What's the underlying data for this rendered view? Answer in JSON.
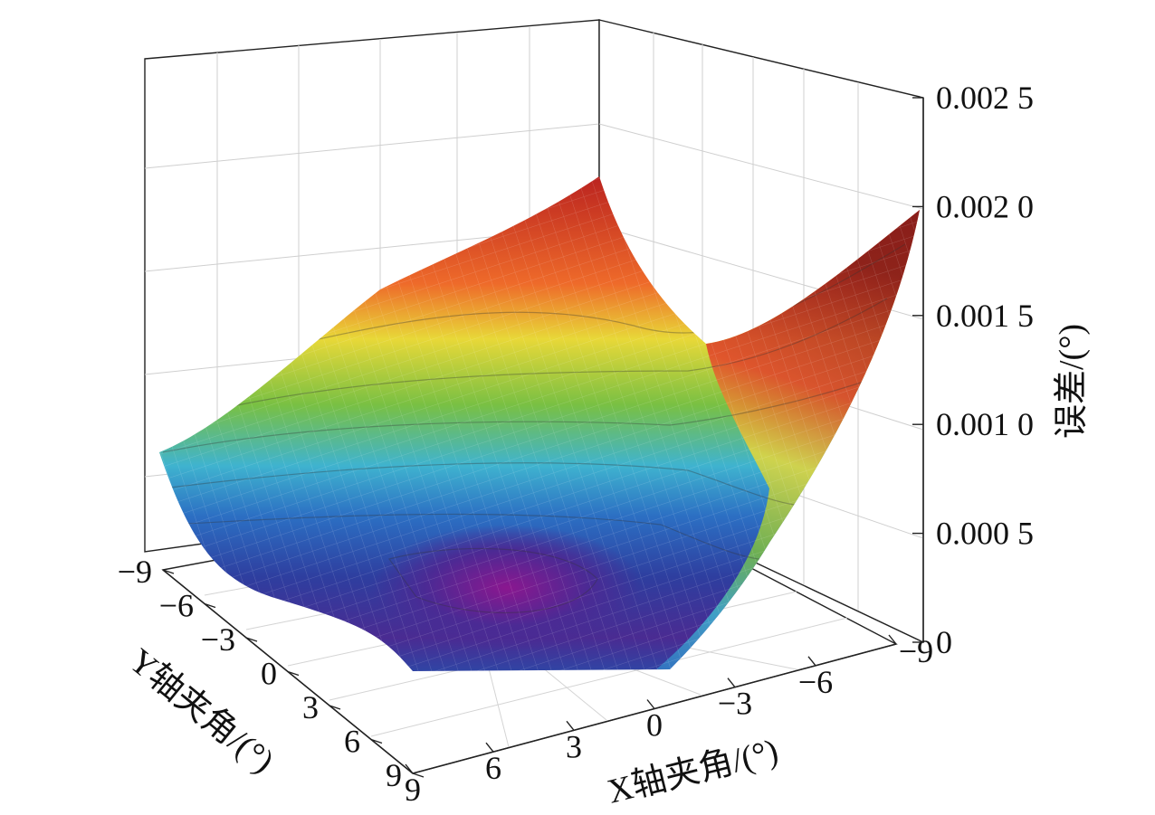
{
  "chart_data": {
    "type": "surface3d",
    "title": "",
    "xlabel": "X轴夹角/(°)",
    "ylabel": "Y轴夹角/(°)",
    "zlabel": "误差/(°)",
    "x_ticks": [
      "9",
      "6",
      "3",
      "0",
      "−3",
      "−6",
      "−9"
    ],
    "y_ticks": [
      "−9",
      "−6",
      "−3",
      "0",
      "3",
      "6",
      "9"
    ],
    "z_ticks": [
      "0",
      "0.000 5",
      "0.001 0",
      "0.001 5",
      "0.002 0",
      "0.002 5"
    ],
    "x_values": [
      9,
      6,
      3,
      0,
      -3,
      -6,
      -9
    ],
    "y_values": [
      -9,
      -6,
      -3,
      0,
      3,
      6,
      9
    ],
    "z_range": [
      0,
      0.0025
    ],
    "grid": true,
    "colormap": [
      "#5b1a8c",
      "#2d3c9c",
      "#2f6ac2",
      "#38a8dc",
      "#79c043",
      "#e3d437",
      "#f07f2a",
      "#d62d26",
      "#8a1a1a"
    ],
    "surface_points": [
      {
        "x": 9,
        "y": -9,
        "z": 0.00098
      },
      {
        "x": 9,
        "y": -6,
        "z": 0.0007
      },
      {
        "x": 9,
        "y": -3,
        "z": 0.00048
      },
      {
        "x": 9,
        "y": 0,
        "z": 0.00032
      },
      {
        "x": 9,
        "y": 3,
        "z": 0.00026
      },
      {
        "x": 9,
        "y": 6,
        "z": 0.00018
      },
      {
        "x": 9,
        "y": 9,
        "z": 0.0001
      },
      {
        "x": 0,
        "y": -9,
        "z": 0.0018
      },
      {
        "x": 0,
        "y": 0,
        "z": 0.00095
      },
      {
        "x": 0,
        "y": 6,
        "z": 0.00012
      },
      {
        "x": 0,
        "y": 9,
        "z": 6e-05
      },
      {
        "x": -9,
        "y": -9,
        "z": 0.0019
      },
      {
        "x": -9,
        "y": -6,
        "z": 0.00185
      },
      {
        "x": -9,
        "y": -3,
        "z": 0.0013
      },
      {
        "x": -9,
        "y": 0,
        "z": 0.0008
      },
      {
        "x": -9,
        "y": 3,
        "z": 0.00045
      },
      {
        "x": -9,
        "y": 9,
        "z": 0.002
      }
    ]
  }
}
